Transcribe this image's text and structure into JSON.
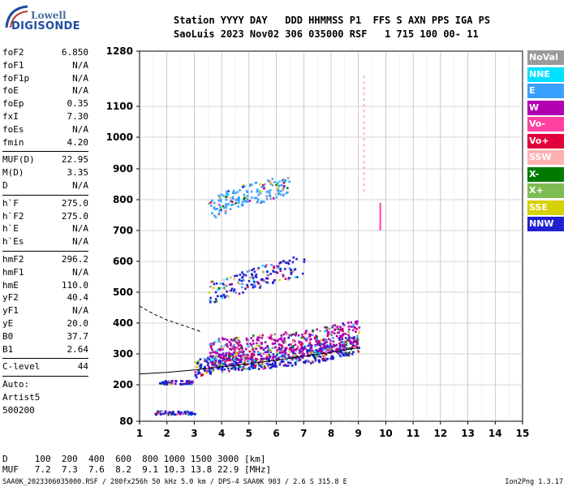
{
  "logo": {
    "top": "Lowell",
    "bottom": "DIGISONDE"
  },
  "header": {
    "line1": "Station YYYY DAY   DDD HHMMSS P1  FFS S AXN PPS IGA PS",
    "line2": "SaoLuis 2023 Nov02 306 035000 RSF   1 715 100 00- 11"
  },
  "params": [
    {
      "k": "foF2",
      "v": "6.850"
    },
    {
      "k": "foF1",
      "v": "N/A"
    },
    {
      "k": "foF1p",
      "v": "N/A"
    },
    {
      "k": "foE",
      "v": "N/A"
    },
    {
      "k": "foEp",
      "v": "0.35"
    },
    {
      "k": "fxI",
      "v": "7.30"
    },
    {
      "k": "foEs",
      "v": "N/A"
    },
    {
      "k": "fmin",
      "v": "4.20"
    },
    {
      "k": "MUF(D)",
      "v": "22.95",
      "sep": true
    },
    {
      "k": "M(D)",
      "v": "3.35"
    },
    {
      "k": "D",
      "v": "N/A"
    },
    {
      "k": "h`F",
      "v": "275.0",
      "sep": true
    },
    {
      "k": "h`F2",
      "v": "275.0"
    },
    {
      "k": "h`E",
      "v": "N/A"
    },
    {
      "k": "h`Es",
      "v": "N/A"
    },
    {
      "k": "hmF2",
      "v": "296.2",
      "sep": true
    },
    {
      "k": "hmF1",
      "v": "N/A"
    },
    {
      "k": "hmE",
      "v": "110.0"
    },
    {
      "k": "yF2",
      "v": "40.4"
    },
    {
      "k": "yF1",
      "v": "N/A"
    },
    {
      "k": "yE",
      "v": "20.0"
    },
    {
      "k": "B0",
      "v": "37.7"
    },
    {
      "k": "B1",
      "v": "2.64"
    },
    {
      "k": "C-level",
      "v": "44",
      "sep": true
    }
  ],
  "auto": [
    "Auto:",
    "Artist5",
    "500200"
  ],
  "legend": [
    {
      "label": "NoVal",
      "color": "#9a9a9a"
    },
    {
      "label": "NNE",
      "color": "#00e0ff"
    },
    {
      "label": "E",
      "color": "#3aa0ff"
    },
    {
      "label": "W",
      "color": "#b000b0"
    },
    {
      "label": "Vo-",
      "color": "#ff40a0"
    },
    {
      "label": "Vo+",
      "color": "#e0003a"
    },
    {
      "label": "SSW",
      "color": "#ffb0b0"
    },
    {
      "label": "X-",
      "color": "#007a00"
    },
    {
      "label": "X+",
      "color": "#7cbc50"
    },
    {
      "label": "SSE",
      "color": "#d8d000"
    },
    {
      "label": "NNW",
      "color": "#2020d0"
    }
  ],
  "bottom": {
    "d_line": "D     100  200  400  600  800 1000 1500 3000 [km]",
    "muf_line": "MUF   7.2  7.3  7.6  8.2  9.1 10.3 13.8 22.9 [MHz]"
  },
  "footer": {
    "left": "SAA0K_2023306035000.RSF / 280fx256h 50 kHz 5.0 km / DPS-4 SAA0K 903 / 2.6 S 315.8 E",
    "right": "Ion2Png 1.3.17"
  },
  "chart_data": {
    "type": "scatter",
    "xlim": [
      1,
      15
    ],
    "ylim": [
      80,
      1280
    ],
    "xticks": [
      1,
      2,
      3,
      4,
      5,
      6,
      7,
      8,
      9,
      10,
      11,
      12,
      13,
      14,
      15
    ],
    "yticks": [
      80,
      200,
      300,
      400,
      500,
      600,
      700,
      800,
      900,
      1000,
      1100,
      1280
    ],
    "yaxis_scale": "non-linear",
    "grid": true,
    "series": [
      {
        "kind": "echo-band",
        "color": "#2020d0",
        "x": [
          3.0,
          3.5,
          4.0,
          4.5,
          5.0,
          5.5,
          6.0,
          6.5,
          7.0,
          7.5,
          8.0,
          8.5,
          9.0
        ],
        "y": [
          255,
          268,
          275,
          280,
          282,
          285,
          290,
          295,
          300,
          305,
          315,
          325,
          340
        ]
      },
      {
        "kind": "echo-band-upper",
        "color": "#b000b0",
        "x": [
          3.5,
          4.0,
          4.5,
          5.0,
          5.5,
          6.0,
          6.5,
          7.0,
          7.5,
          8.0,
          8.5,
          9.0
        ],
        "y": [
          300,
          310,
          315,
          318,
          320,
          325,
          330,
          335,
          340,
          350,
          360,
          370
        ]
      },
      {
        "kind": "second-hop",
        "color": "#2020d0",
        "x": [
          3.5,
          4.0,
          4.5,
          5.0,
          5.5,
          6.0,
          6.5,
          7.0
        ],
        "y": [
          500,
          515,
          530,
          545,
          555,
          565,
          580,
          595
        ]
      },
      {
        "kind": "third-hop",
        "color": "#3aa0ff",
        "x": [
          3.5,
          4.0,
          4.5,
          5.0,
          5.5,
          6.0,
          6.5
        ],
        "y": [
          770,
          790,
          810,
          820,
          830,
          840,
          850
        ]
      },
      {
        "kind": "low-echo",
        "color": "#2020d0",
        "x": [
          1.7,
          2.0,
          2.5,
          2.9
        ],
        "y": [
          210,
          210,
          210,
          210
        ]
      },
      {
        "kind": "low-echo",
        "color": "#2020d0",
        "x": [
          1.5,
          2.0,
          2.5,
          3.0
        ],
        "y": [
          110,
          110,
          110,
          110
        ]
      },
      {
        "kind": "profile-curve",
        "color": "#000000",
        "x": [
          1.0,
          2.0,
          3.0,
          4.0,
          5.0,
          6.0,
          7.0,
          8.0,
          9.0
        ],
        "y": [
          235,
          240,
          248,
          258,
          268,
          280,
          292,
          305,
          320
        ]
      },
      {
        "kind": "dashed-curve",
        "color": "#000000",
        "x": [
          1.0,
          1.5,
          2.0,
          2.5,
          3.0,
          3.3
        ],
        "y": [
          455,
          430,
          410,
          395,
          380,
          370
        ]
      }
    ]
  }
}
